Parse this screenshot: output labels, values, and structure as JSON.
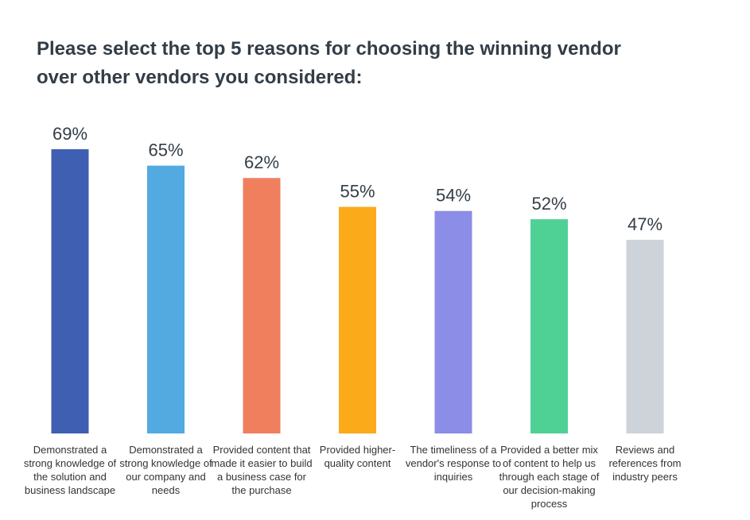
{
  "chart_data": {
    "type": "bar",
    "title": "Please select the top 5 reasons for choosing the winning vendor over other vendors you considered:",
    "categories": [
      "Demonstrated a strong knowledge of the solution and business landscape",
      "Demonstrated a strong knowledge of our company and needs",
      "Provided content that made it easier to build a business case for the purchase",
      "Provided higher-quality content",
      "The timeliness of a vendor's response to inquiries",
      "Provided a better mix of content to help us through each stage of our decision-making process",
      "Reviews and references from industry peers"
    ],
    "values": [
      69,
      65,
      62,
      55,
      54,
      52,
      47
    ],
    "value_labels": [
      "69%",
      "65%",
      "62%",
      "55%",
      "54%",
      "52%",
      "47%"
    ],
    "colors": [
      "#3f5fb3",
      "#52aae0",
      "#f07f5e",
      "#fbaa1a",
      "#8b8de6",
      "#4fd196",
      "#cdd3d9"
    ]
  }
}
